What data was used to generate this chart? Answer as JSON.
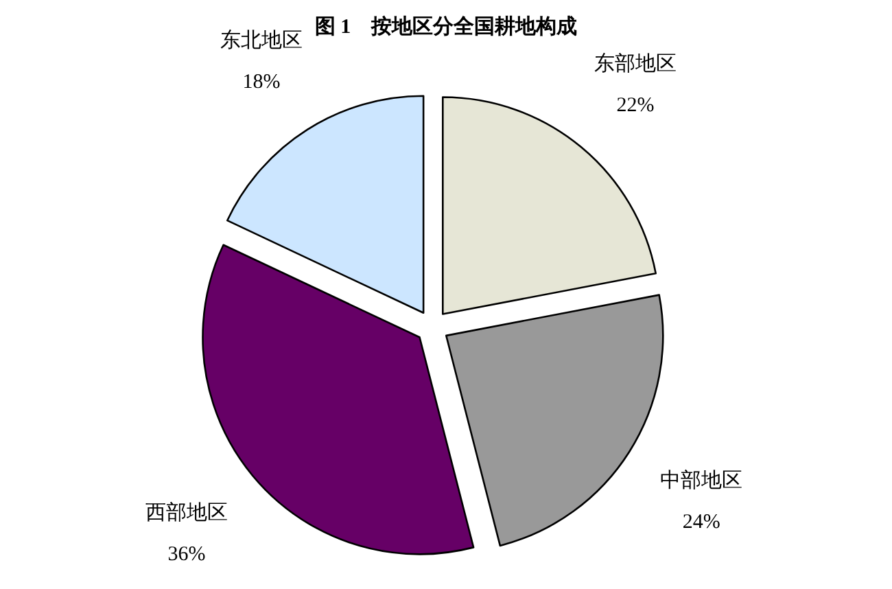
{
  "chart_data": {
    "type": "pie",
    "title": "图 1　按地区分全国耕地构成",
    "categories": [
      "东部地区",
      "中部地区",
      "西部地区",
      "东北地区"
    ],
    "values": [
      22,
      24,
      36,
      18
    ],
    "value_labels": [
      "22%",
      "24%",
      "36%",
      "18%"
    ],
    "colors": [
      "#e6e6d6",
      "#999999",
      "#660066",
      "#cce6ff"
    ]
  }
}
